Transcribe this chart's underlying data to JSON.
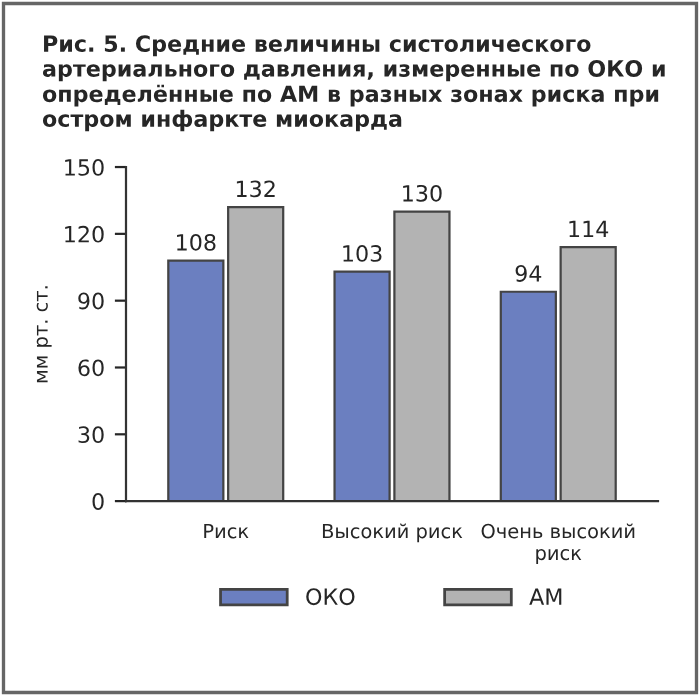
{
  "chart_data": {
    "type": "bar",
    "title": "Рис. 5. Средние величины систолического артериального давления, измеренные по ОКО и определённые по АМ в разных зонах риска при остром инфаркте миокарда",
    "ylabel": "мм рт. ст.",
    "categories": [
      "Риск",
      "Высокий риск",
      "Очень высокий\nриск"
    ],
    "series": [
      {
        "name": "ОКО",
        "color": "#6b7fc0",
        "values": [
          108,
          103,
          94
        ]
      },
      {
        "name": "АМ",
        "color": "#b3b3b3",
        "values": [
          132,
          130,
          114
        ]
      }
    ],
    "ylim": [
      0,
      150
    ],
    "yticks": [
      0,
      30,
      60,
      90,
      120,
      150
    ],
    "data_labels": true,
    "legend": "bottom",
    "grid": false
  }
}
